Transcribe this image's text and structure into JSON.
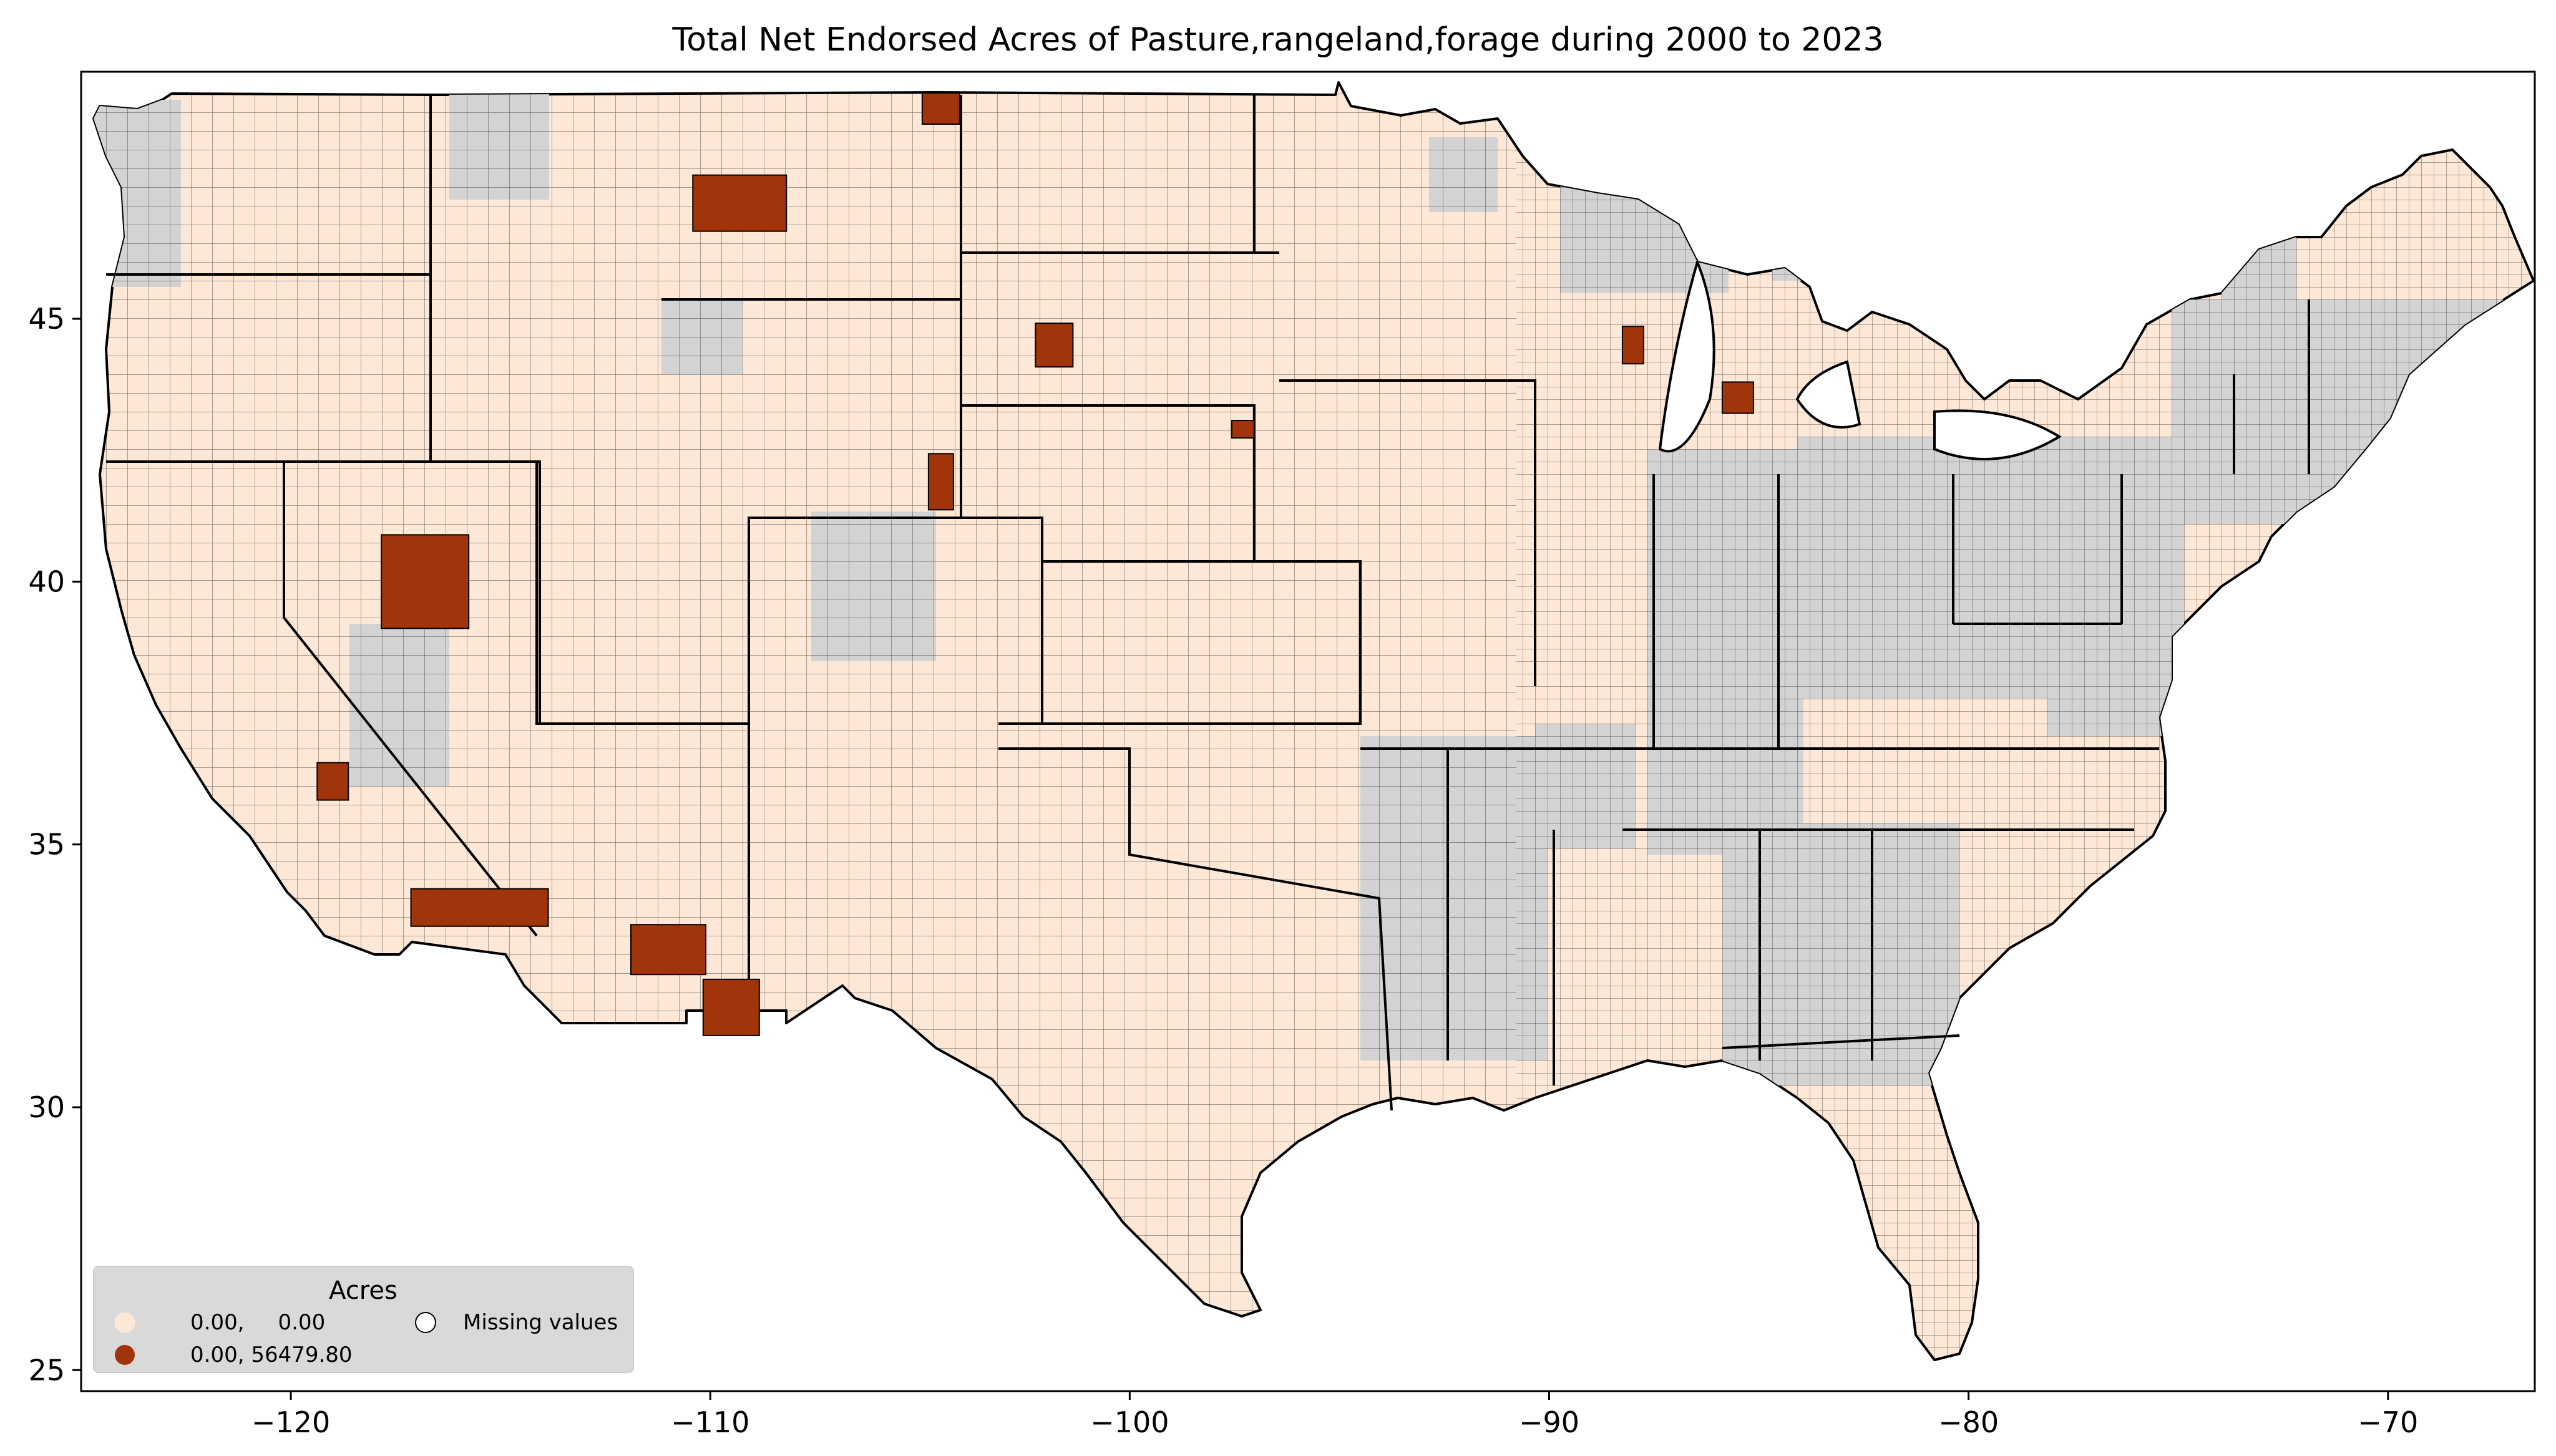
{
  "title": "Total Net Endorsed Acres of Pasture,rangeland,forage during 2000 to 2023",
  "chart_data": {
    "type": "choropleth",
    "xlim": [
      -125,
      -66.5
    ],
    "ylim": [
      24.6,
      49.7
    ],
    "x_ticks": [
      {
        "value": -120,
        "label": "−120"
      },
      {
        "value": -110,
        "label": "−110"
      },
      {
        "value": -100,
        "label": "−100"
      },
      {
        "value": -90,
        "label": "−90"
      },
      {
        "value": -80,
        "label": "−80"
      },
      {
        "value": -70,
        "label": "−70"
      }
    ],
    "y_ticks": [
      {
        "value": 25,
        "label": "25"
      },
      {
        "value": 30,
        "label": "30"
      },
      {
        "value": 35,
        "label": "35"
      },
      {
        "value": 40,
        "label": "40"
      },
      {
        "value": 45,
        "label": "45"
      }
    ],
    "colors": {
      "zero": "#fde8d7",
      "positive": "#a1340a",
      "missing": "#d3d3d3",
      "border": "#000000"
    },
    "legend": {
      "title": "Acres",
      "placement": "lower-left",
      "items": [
        {
          "label": "0.00,     0.00",
          "color": "#fde8d7"
        },
        {
          "label": "0.00, 56479.80",
          "color": "#a1340a"
        },
        {
          "label": "Missing values",
          "color": "#ffffff"
        }
      ]
    },
    "highlighted_counties": [
      {
        "lon": -109.3,
        "lat": 47.2
      },
      {
        "lon": -104.5,
        "lat": 49.0
      },
      {
        "lon": -101.8,
        "lat": 44.5
      },
      {
        "lon": -97.3,
        "lat": 42.9
      },
      {
        "lon": -104.5,
        "lat": 41.9
      },
      {
        "lon": -88.0,
        "lat": 44.5
      },
      {
        "lon": -85.5,
        "lat": 43.5
      },
      {
        "lon": -116.8,
        "lat": 40.0
      },
      {
        "lon": -119.0,
        "lat": 36.2
      },
      {
        "lon": -115.5,
        "lat": 33.8
      },
      {
        "lon": -111.0,
        "lat": 33.0
      },
      {
        "lon": -109.5,
        "lat": 31.9
      }
    ]
  }
}
